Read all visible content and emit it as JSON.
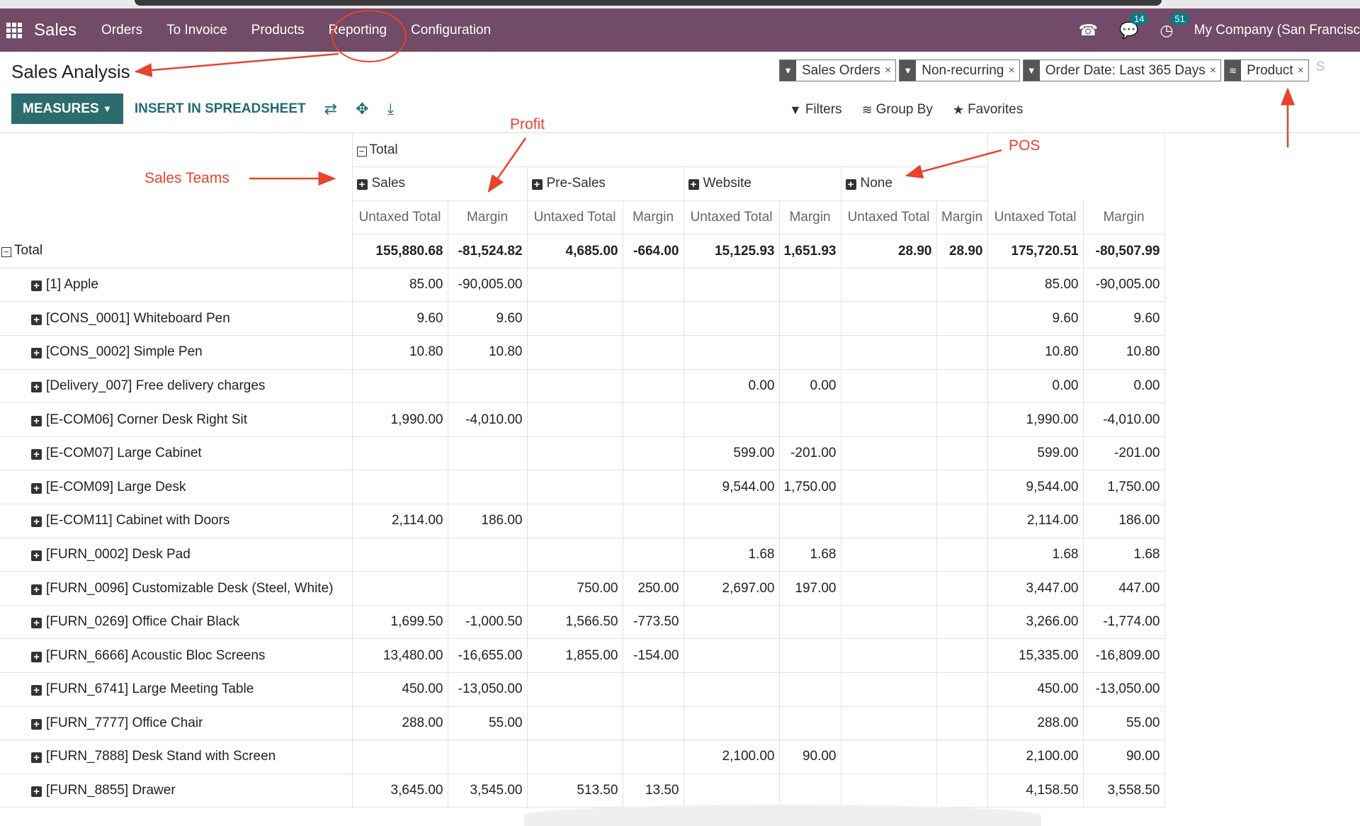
{
  "navbar": {
    "app_name": "Sales",
    "menu": [
      "Orders",
      "To Invoice",
      "Products",
      "Reporting",
      "Configuration"
    ],
    "messages_badge": "14",
    "activities_badge": "51",
    "company": "My Company (San Francisc"
  },
  "page": {
    "title": "Sales Analysis"
  },
  "facets": [
    "Sales Orders",
    "Non-recurring",
    "Order Date: Last 365 Days",
    "Product"
  ],
  "facet_more": "S",
  "toolbar": {
    "measures": "MEASURES",
    "insert": "INSERT IN SPREADSHEET"
  },
  "search_panel": {
    "filters": "Filters",
    "group_by": "Group By",
    "favorites": "Favorites"
  },
  "annotations": {
    "profit": "Profit",
    "sales_teams": "Sales Teams",
    "pos": "POS"
  },
  "pivot": {
    "total_header": "Total",
    "groups": [
      "Sales",
      "Pre-Sales",
      "Website",
      "None"
    ],
    "measures": {
      "untaxed": "Untaxed Total",
      "margin": "Margin"
    },
    "total_row_label": "Total",
    "total_row": [
      "155,880.68",
      "-81,524.82",
      "4,685.00",
      "-664.00",
      "15,125.93",
      "1,651.93",
      "28.90",
      "28.90",
      "175,720.51",
      "-80,507.99"
    ],
    "rows": [
      {
        "label": "[1] Apple",
        "values": [
          "85.00",
          "-90,005.00",
          "",
          "",
          "",
          "",
          "",
          "",
          "85.00",
          "-90,005.00"
        ]
      },
      {
        "label": "[CONS_0001] Whiteboard Pen",
        "values": [
          "9.60",
          "9.60",
          "",
          "",
          "",
          "",
          "",
          "",
          "9.60",
          "9.60"
        ]
      },
      {
        "label": "[CONS_0002] Simple Pen",
        "values": [
          "10.80",
          "10.80",
          "",
          "",
          "",
          "",
          "",
          "",
          "10.80",
          "10.80"
        ]
      },
      {
        "label": "[Delivery_007] Free delivery charges",
        "values": [
          "",
          "",
          "",
          "",
          "0.00",
          "0.00",
          "",
          "",
          "0.00",
          "0.00"
        ]
      },
      {
        "label": "[E-COM06] Corner Desk Right Sit",
        "values": [
          "1,990.00",
          "-4,010.00",
          "",
          "",
          "",
          "",
          "",
          "",
          "1,990.00",
          "-4,010.00"
        ]
      },
      {
        "label": "[E-COM07] Large Cabinet",
        "values": [
          "",
          "",
          "",
          "",
          "599.00",
          "-201.00",
          "",
          "",
          "599.00",
          "-201.00"
        ]
      },
      {
        "label": "[E-COM09] Large Desk",
        "values": [
          "",
          "",
          "",
          "",
          "9,544.00",
          "1,750.00",
          "",
          "",
          "9,544.00",
          "1,750.00"
        ]
      },
      {
        "label": "[E-COM11] Cabinet with Doors",
        "values": [
          "2,114.00",
          "186.00",
          "",
          "",
          "",
          "",
          "",
          "",
          "2,114.00",
          "186.00"
        ]
      },
      {
        "label": "[FURN_0002] Desk Pad",
        "values": [
          "",
          "",
          "",
          "",
          "1.68",
          "1.68",
          "",
          "",
          "1.68",
          "1.68"
        ]
      },
      {
        "label": "[FURN_0096] Customizable Desk (Steel, White)",
        "values": [
          "",
          "",
          "750.00",
          "250.00",
          "2,697.00",
          "197.00",
          "",
          "",
          "3,447.00",
          "447.00"
        ]
      },
      {
        "label": "[FURN_0269] Office Chair Black",
        "values": [
          "1,699.50",
          "-1,000.50",
          "1,566.50",
          "-773.50",
          "",
          "",
          "",
          "",
          "3,266.00",
          "-1,774.00"
        ]
      },
      {
        "label": "[FURN_6666] Acoustic Bloc Screens",
        "values": [
          "13,480.00",
          "-16,655.00",
          "1,855.00",
          "-154.00",
          "",
          "",
          "",
          "",
          "15,335.00",
          "-16,809.00"
        ]
      },
      {
        "label": "[FURN_6741] Large Meeting Table",
        "values": [
          "450.00",
          "-13,050.00",
          "",
          "",
          "",
          "",
          "",
          "",
          "450.00",
          "-13,050.00"
        ]
      },
      {
        "label": "[FURN_7777] Office Chair",
        "values": [
          "288.00",
          "55.00",
          "",
          "",
          "",
          "",
          "",
          "",
          "288.00",
          "55.00"
        ]
      },
      {
        "label": "[FURN_7888] Desk Stand with Screen",
        "values": [
          "",
          "",
          "",
          "",
          "2,100.00",
          "90.00",
          "",
          "",
          "2,100.00",
          "90.00"
        ]
      },
      {
        "label": "[FURN_8855] Drawer",
        "values": [
          "3,645.00",
          "3,545.00",
          "513.50",
          "13.50",
          "",
          "",
          "",
          "",
          "4,158.50",
          "3,558.50"
        ]
      }
    ]
  }
}
